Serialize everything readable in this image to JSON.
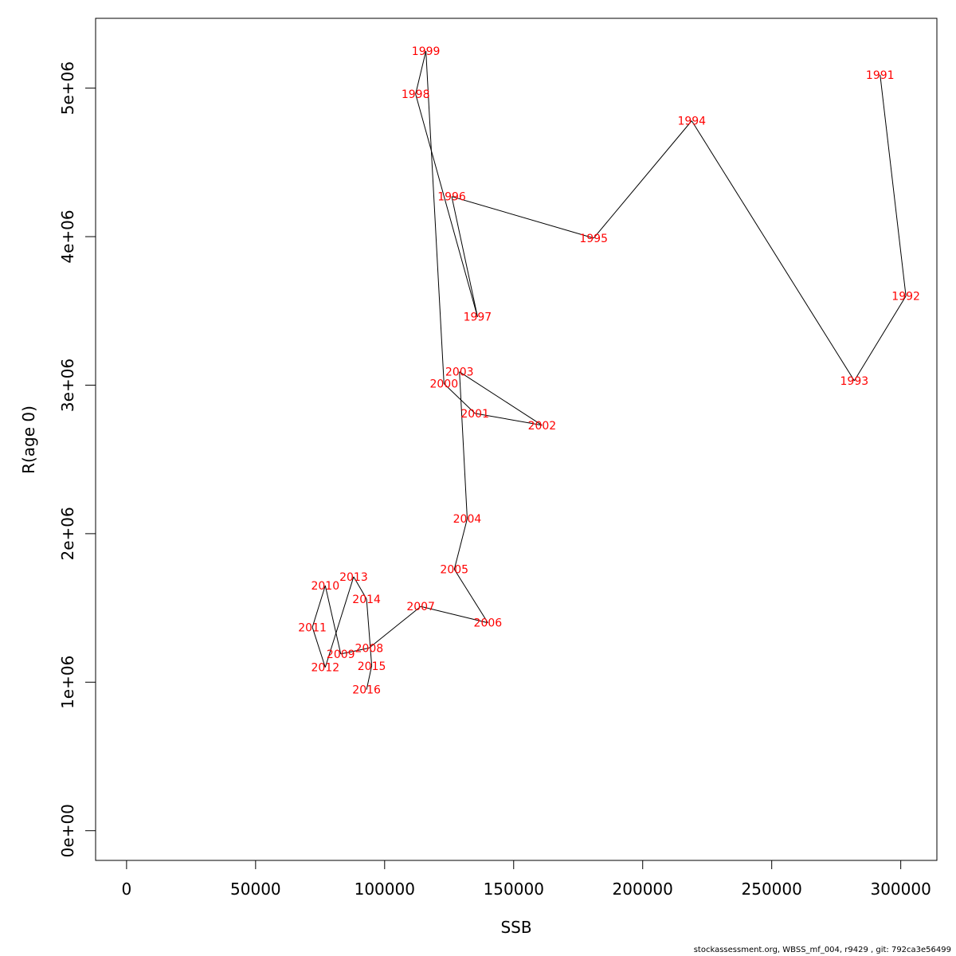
{
  "chart_data": {
    "type": "line",
    "title": "",
    "xlabel": "SSB",
    "ylabel": "R(age 0)",
    "xlim": [
      -12000,
      314000
    ],
    "ylim": [
      -200000,
      5470000
    ],
    "x_ticks": [
      0,
      50000,
      100000,
      150000,
      200000,
      250000,
      300000
    ],
    "x_tick_labels": [
      "0",
      "50000",
      "100000",
      "150000",
      "200000",
      "250000",
      "300000"
    ],
    "y_ticks": [
      0,
      1000000,
      2000000,
      3000000,
      4000000,
      5000000
    ],
    "y_tick_labels": [
      "0e+00",
      "1e+06",
      "2e+06",
      "3e+06",
      "4e+06",
      "5e+06"
    ],
    "grid": false,
    "line_color": "#000000",
    "label_color": "#ff0000",
    "points": [
      {
        "year": "1991",
        "ssb": 292000,
        "r": 5090000
      },
      {
        "year": "1992",
        "ssb": 302000,
        "r": 3600000
      },
      {
        "year": "1993",
        "ssb": 282000,
        "r": 3030000
      },
      {
        "year": "1994",
        "ssb": 219000,
        "r": 4780000
      },
      {
        "year": "1995",
        "ssb": 181000,
        "r": 3990000
      },
      {
        "year": "1996",
        "ssb": 126000,
        "r": 4270000
      },
      {
        "year": "1997",
        "ssb": 136000,
        "r": 3460000
      },
      {
        "year": "1998",
        "ssb": 112000,
        "r": 4960000
      },
      {
        "year": "1999",
        "ssb": 116000,
        "r": 5250000
      },
      {
        "year": "2000",
        "ssb": 123000,
        "r": 3010000
      },
      {
        "year": "2001",
        "ssb": 135000,
        "r": 2810000
      },
      {
        "year": "2002",
        "ssb": 161000,
        "r": 2730000
      },
      {
        "year": "2003",
        "ssb": 129000,
        "r": 3090000
      },
      {
        "year": "2004",
        "ssb": 132000,
        "r": 2100000
      },
      {
        "year": "2005",
        "ssb": 127000,
        "r": 1760000
      },
      {
        "year": "2006",
        "ssb": 140000,
        "r": 1400000
      },
      {
        "year": "2007",
        "ssb": 114000,
        "r": 1510000
      },
      {
        "year": "2008",
        "ssb": 94000,
        "r": 1230000
      },
      {
        "year": "2009",
        "ssb": 83000,
        "r": 1190000
      },
      {
        "year": "2010",
        "ssb": 77000,
        "r": 1650000
      },
      {
        "year": "2011",
        "ssb": 72000,
        "r": 1370000
      },
      {
        "year": "2012",
        "ssb": 77000,
        "r": 1100000
      },
      {
        "year": "2013",
        "ssb": 88000,
        "r": 1710000
      },
      {
        "year": "2014",
        "ssb": 93000,
        "r": 1560000
      },
      {
        "year": "2015",
        "ssb": 95000,
        "r": 1110000
      },
      {
        "year": "2016",
        "ssb": 93000,
        "r": 950000
      }
    ]
  },
  "footer": {
    "text": "stockassessment.org, WBSS_mf_004, r9429 , git: 792ca3e56499"
  }
}
